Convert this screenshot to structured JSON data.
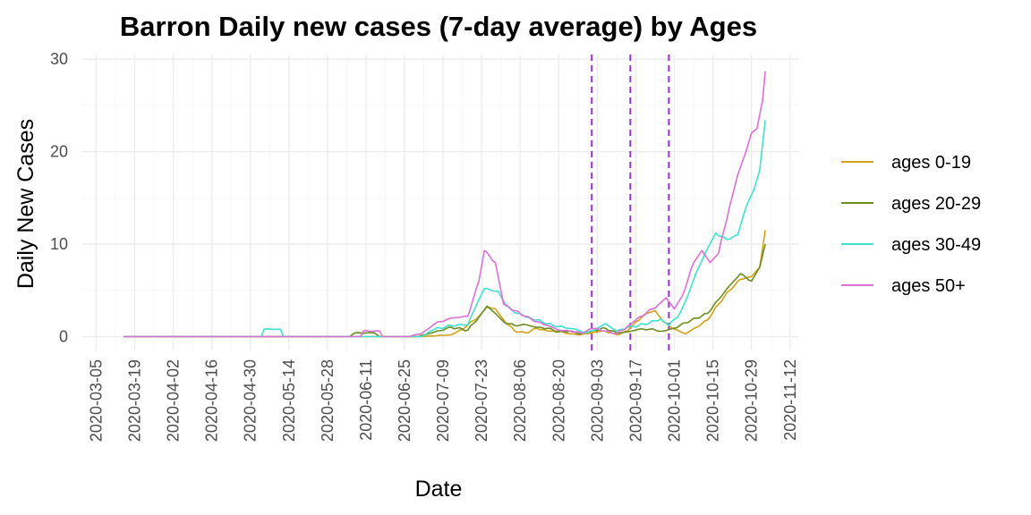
{
  "chart_data": {
    "type": "line",
    "title": "Barron Daily new cases (7-day average) by Ages",
    "xlabel": "Date",
    "ylabel": "Daily New Cases",
    "x_type": "date",
    "xlim": [
      "2020-02-29",
      "2020-11-15"
    ],
    "x_ticks": [
      "2020-03-05",
      "2020-03-19",
      "2020-04-02",
      "2020-04-16",
      "2020-04-30",
      "2020-05-14",
      "2020-05-28",
      "2020-06-11",
      "2020-06-25",
      "2020-07-09",
      "2020-07-23",
      "2020-08-06",
      "2020-08-20",
      "2020-09-03",
      "2020-09-17",
      "2020-10-01",
      "2020-10-15",
      "2020-10-29",
      "2020-11-12"
    ],
    "ylim": [
      -1.5,
      30.5
    ],
    "y_ticks": [
      0,
      10,
      20,
      30
    ],
    "grid": true,
    "legend_position": "right",
    "vertical_lines": [
      "2020-09-01",
      "2020-09-15",
      "2020-09-29"
    ],
    "vertical_line_color": "#9932cc",
    "series": [
      {
        "name": "ages 0-19",
        "color": "#d4a017",
        "points": [
          [
            "2020-03-15",
            0
          ],
          [
            "2020-07-01",
            0
          ],
          [
            "2020-07-12",
            0.2
          ],
          [
            "2020-07-16",
            0.8
          ],
          [
            "2020-07-22",
            2.2
          ],
          [
            "2020-07-25",
            3.2
          ],
          [
            "2020-07-28",
            3.0
          ],
          [
            "2020-07-31",
            1.8
          ],
          [
            "2020-08-04",
            0.6
          ],
          [
            "2020-08-08",
            0.4
          ],
          [
            "2020-08-12",
            0.9
          ],
          [
            "2020-08-16",
            0.6
          ],
          [
            "2020-08-20",
            0.6
          ],
          [
            "2020-08-24",
            0.3
          ],
          [
            "2020-08-28",
            0.2
          ],
          [
            "2020-09-02",
            0.5
          ],
          [
            "2020-09-06",
            0.6
          ],
          [
            "2020-09-10",
            0.2
          ],
          [
            "2020-09-14",
            0.6
          ],
          [
            "2020-09-17",
            1.6
          ],
          [
            "2020-09-21",
            2.5
          ],
          [
            "2020-09-24",
            2.8
          ],
          [
            "2020-09-27",
            1.6
          ],
          [
            "2020-10-01",
            0.8
          ],
          [
            "2020-10-05",
            0.3
          ],
          [
            "2020-10-09",
            1.0
          ],
          [
            "2020-10-13",
            1.8
          ],
          [
            "2020-10-17",
            3.5
          ],
          [
            "2020-10-21",
            5.0
          ],
          [
            "2020-10-25",
            6.2
          ],
          [
            "2020-10-29",
            6.5
          ],
          [
            "2020-11-01",
            7.5
          ],
          [
            "2020-11-03",
            11.5
          ]
        ]
      },
      {
        "name": "ages 20-29",
        "color": "#6b8e23",
        "points": [
          [
            "2020-03-15",
            0
          ],
          [
            "2020-06-05",
            0
          ],
          [
            "2020-06-07",
            0.4
          ],
          [
            "2020-06-14",
            0.4
          ],
          [
            "2020-06-16",
            0
          ],
          [
            "2020-06-30",
            0
          ],
          [
            "2020-07-06",
            0.5
          ],
          [
            "2020-07-12",
            1.0
          ],
          [
            "2020-07-18",
            0.7
          ],
          [
            "2020-07-22",
            2.1
          ],
          [
            "2020-07-25",
            3.3
          ],
          [
            "2020-07-28",
            2.5
          ],
          [
            "2020-07-31",
            1.6
          ],
          [
            "2020-08-04",
            1.2
          ],
          [
            "2020-08-08",
            1.3
          ],
          [
            "2020-08-12",
            1.0
          ],
          [
            "2020-08-16",
            0.9
          ],
          [
            "2020-08-20",
            0.5
          ],
          [
            "2020-08-24",
            0.6
          ],
          [
            "2020-08-28",
            0.3
          ],
          [
            "2020-09-02",
            0.7
          ],
          [
            "2020-09-06",
            0.9
          ],
          [
            "2020-09-10",
            0.4
          ],
          [
            "2020-09-14",
            0.5
          ],
          [
            "2020-09-18",
            0.8
          ],
          [
            "2020-09-22",
            0.8
          ],
          [
            "2020-09-27",
            0.6
          ],
          [
            "2020-10-01",
            0.9
          ],
          [
            "2020-10-05",
            1.5
          ],
          [
            "2020-10-09",
            2.0
          ],
          [
            "2020-10-13",
            2.5
          ],
          [
            "2020-10-17",
            4.0
          ],
          [
            "2020-10-21",
            5.5
          ],
          [
            "2020-10-25",
            6.8
          ],
          [
            "2020-10-29",
            6.0
          ],
          [
            "2020-11-01",
            7.5
          ],
          [
            "2020-11-03",
            10.0
          ]
        ]
      },
      {
        "name": "ages 30-49",
        "color": "#40e0d0",
        "points": [
          [
            "2020-03-15",
            0
          ],
          [
            "2020-05-04",
            0
          ],
          [
            "2020-05-05",
            0.8
          ],
          [
            "2020-05-11",
            0.8
          ],
          [
            "2020-05-12",
            0
          ],
          [
            "2020-07-01",
            0
          ],
          [
            "2020-07-06",
            0.8
          ],
          [
            "2020-07-12",
            1.2
          ],
          [
            "2020-07-18",
            1.3
          ],
          [
            "2020-07-22",
            4.0
          ],
          [
            "2020-07-24",
            5.2
          ],
          [
            "2020-07-29",
            4.9
          ],
          [
            "2020-08-01",
            3.3
          ],
          [
            "2020-08-05",
            2.5
          ],
          [
            "2020-08-10",
            2.0
          ],
          [
            "2020-08-14",
            1.6
          ],
          [
            "2020-08-18",
            1.2
          ],
          [
            "2020-08-22",
            1.0
          ],
          [
            "2020-08-26",
            0.8
          ],
          [
            "2020-08-30",
            0.4
          ],
          [
            "2020-09-03",
            0.9
          ],
          [
            "2020-09-06",
            1.4
          ],
          [
            "2020-09-10",
            0.6
          ],
          [
            "2020-09-14",
            1.0
          ],
          [
            "2020-09-18",
            1.2
          ],
          [
            "2020-09-22",
            1.5
          ],
          [
            "2020-09-26",
            1.9
          ],
          [
            "2020-09-29",
            1.2
          ],
          [
            "2020-10-03",
            2.5
          ],
          [
            "2020-10-06",
            4.5
          ],
          [
            "2020-10-09",
            7.0
          ],
          [
            "2020-10-13",
            9.5
          ],
          [
            "2020-10-16",
            11.2
          ],
          [
            "2020-10-20",
            10.5
          ],
          [
            "2020-10-24",
            11.0
          ],
          [
            "2020-10-27",
            14.0
          ],
          [
            "2020-10-30",
            16.0
          ],
          [
            "2020-11-01",
            18.0
          ],
          [
            "2020-11-03",
            23.4
          ]
        ]
      },
      {
        "name": "ages 50+",
        "color": "#da70d6",
        "points": [
          [
            "2020-03-15",
            0
          ],
          [
            "2020-06-09",
            0
          ],
          [
            "2020-06-10",
            0.6
          ],
          [
            "2020-06-16",
            0.6
          ],
          [
            "2020-06-17",
            0
          ],
          [
            "2020-06-26",
            0
          ],
          [
            "2020-07-01",
            0.3
          ],
          [
            "2020-07-06",
            1.4
          ],
          [
            "2020-07-12",
            2.0
          ],
          [
            "2020-07-18",
            2.2
          ],
          [
            "2020-07-22",
            6.0
          ],
          [
            "2020-07-24",
            9.3
          ],
          [
            "2020-07-28",
            8.0
          ],
          [
            "2020-07-31",
            3.5
          ],
          [
            "2020-08-04",
            2.8
          ],
          [
            "2020-08-08",
            2.2
          ],
          [
            "2020-08-12",
            1.6
          ],
          [
            "2020-08-16",
            1.2
          ],
          [
            "2020-08-20",
            0.7
          ],
          [
            "2020-08-24",
            0.6
          ],
          [
            "2020-08-28",
            0.4
          ],
          [
            "2020-09-02",
            0.9
          ],
          [
            "2020-09-06",
            0.6
          ],
          [
            "2020-09-10",
            0.3
          ],
          [
            "2020-09-14",
            1.1
          ],
          [
            "2020-09-17",
            1.8
          ],
          [
            "2020-09-21",
            2.6
          ],
          [
            "2020-09-25",
            3.4
          ],
          [
            "2020-09-28",
            4.2
          ],
          [
            "2020-10-01",
            3.0
          ],
          [
            "2020-10-04",
            4.5
          ],
          [
            "2020-10-08",
            8.0
          ],
          [
            "2020-10-11",
            9.3
          ],
          [
            "2020-10-14",
            8.0
          ],
          [
            "2020-10-17",
            9.0
          ],
          [
            "2020-10-21",
            14.0
          ],
          [
            "2020-10-24",
            17.5
          ],
          [
            "2020-10-27",
            20.0
          ],
          [
            "2020-10-29",
            22.0
          ],
          [
            "2020-10-31",
            22.5
          ],
          [
            "2020-11-02",
            25.5
          ],
          [
            "2020-11-03",
            28.7
          ]
        ]
      }
    ]
  }
}
